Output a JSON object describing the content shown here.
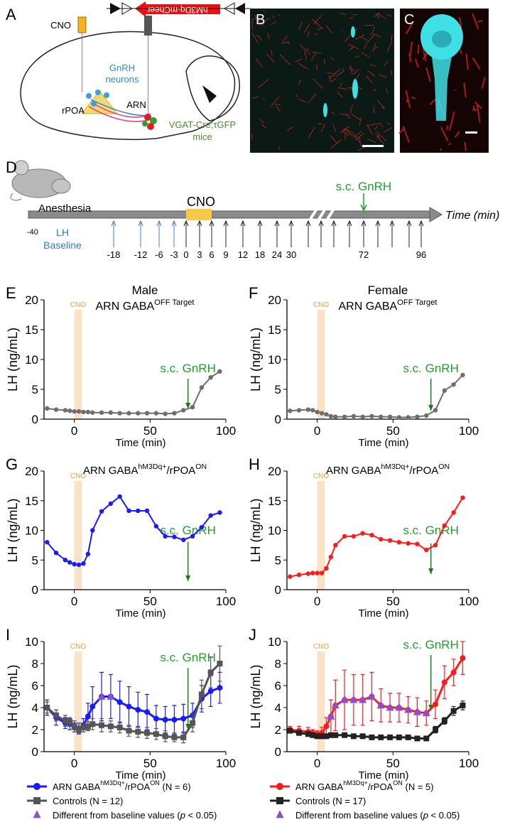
{
  "panel_labels": [
    "A",
    "B",
    "C",
    "D",
    "E",
    "F",
    "G",
    "H",
    "I",
    "J"
  ],
  "schematic": {
    "cno": "CNO",
    "construct": "hM3Dq-mCheer",
    "gnrh_neurons": [
      "GnRH",
      "neurons"
    ],
    "rpoa": "rPOA",
    "arn": "ARN",
    "mice": [
      "VGAT-Cre;τGFP",
      "mice"
    ]
  },
  "timeline": {
    "anesthesia": "Anesthesia",
    "start": "-40",
    "cno": "CNO",
    "injection": "s.c. GnRH",
    "axis_label": "Time (min)",
    "baseline": [
      "LH",
      "Baseline"
    ],
    "sample_labels": [
      "-18",
      "-12",
      "-6",
      "-3",
      "0",
      "3",
      "6",
      "9",
      "12",
      "18",
      "24",
      "30",
      "72",
      "96"
    ]
  },
  "chart_data": [
    {
      "type": "line",
      "title": "Male",
      "subtitle": [
        "ARN GABA",
        "OFF Target"
      ],
      "x": [
        -18,
        -12,
        -6,
        -3,
        0,
        3,
        6,
        9,
        12,
        18,
        24,
        30,
        36,
        42,
        48,
        54,
        60,
        66,
        72,
        78,
        84,
        90,
        96
      ],
      "xlim": [
        -20,
        100
      ],
      "xticks": [
        0,
        50,
        100
      ],
      "ylim": [
        0,
        20
      ],
      "yticks": [
        0,
        5,
        10,
        15,
        20
      ],
      "x_label": "Time (min)",
      "y_label": "LH (ng/mL)",
      "band": {
        "label": "CNO",
        "range": [
          0,
          5
        ],
        "color": "#fbe1c6"
      },
      "annotation": {
        "text": "s.c. GnRH",
        "x": 75,
        "color": "#1fa02a"
      },
      "series": [
        {
          "color": "#6e6e6e",
          "marker": "circle",
          "values": [
            1.8,
            1.6,
            1.5,
            1.4,
            1.3,
            1.3,
            1.2,
            1.2,
            1.1,
            1.1,
            1.1,
            1.0,
            1.0,
            1.0,
            1.0,
            1.0,
            0.9,
            1.0,
            1.5,
            2.0,
            5.3,
            7.0,
            8.0
          ]
        }
      ]
    },
    {
      "type": "line",
      "title": "Female",
      "subtitle": [
        "ARN GABA",
        "OFF Target"
      ],
      "x": [
        -18,
        -12,
        -6,
        -3,
        0,
        3,
        6,
        9,
        12,
        18,
        24,
        30,
        36,
        42,
        48,
        54,
        60,
        66,
        72,
        78,
        84,
        90,
        96
      ],
      "xlim": [
        -20,
        100
      ],
      "xticks": [
        0,
        50,
        100
      ],
      "ylim": [
        0,
        20
      ],
      "yticks": [
        0,
        5,
        10,
        15,
        20
      ],
      "x_label": "Time (min)",
      "y_label": "LH (ng/mL)",
      "band": {
        "label": "CNO",
        "range": [
          0,
          5
        ],
        "color": "#fbe1c6"
      },
      "annotation": {
        "text": "s.c. GnRH",
        "x": 75,
        "color": "#1fa02a"
      },
      "series": [
        {
          "color": "#6e6e6e",
          "marker": "circle",
          "values": [
            1.4,
            1.5,
            1.6,
            1.5,
            1.2,
            1.0,
            0.8,
            0.5,
            0.4,
            0.4,
            0.5,
            0.4,
            0.5,
            0.4,
            0.4,
            0.3,
            0.3,
            0.4,
            0.6,
            1.5,
            4.8,
            5.8,
            7.4
          ]
        }
      ]
    },
    {
      "type": "line",
      "title": [
        "ARN GABA",
        "hM3Dq+",
        "/rPOA",
        "ON"
      ],
      "x": [
        -18,
        -12,
        -6,
        -3,
        0,
        3,
        6,
        9,
        12,
        18,
        24,
        30,
        36,
        42,
        48,
        54,
        60,
        66,
        72,
        78,
        84,
        90,
        96
      ],
      "xlim": [
        -20,
        100
      ],
      "xticks": [
        0,
        50,
        100
      ],
      "ylim": [
        0,
        20
      ],
      "yticks": [
        0,
        5,
        10,
        15,
        20
      ],
      "x_label": "Time (min)",
      "y_label": "LH (ng/mL)",
      "band": {
        "label": "CNO",
        "range": [
          0,
          5
        ],
        "color": "#fbe1c6"
      },
      "annotation": {
        "text": "s.c. GnRH",
        "x": 75,
        "color": "#1fa02a"
      },
      "series": [
        {
          "color": "#1a1aff",
          "marker": "circle",
          "values": [
            8.0,
            6.2,
            5.0,
            4.6,
            4.3,
            4.2,
            4.4,
            6.0,
            10.0,
            13.2,
            14.5,
            15.7,
            13.3,
            13.3,
            13.3,
            10.7,
            9.0,
            8.9,
            8.4,
            9.0,
            10.5,
            12.5,
            13.0
          ]
        }
      ]
    },
    {
      "type": "line",
      "title": [
        "ARN GABA",
        "hM3Dq+",
        "/rPOA",
        "ON"
      ],
      "x": [
        -18,
        -12,
        -6,
        -3,
        0,
        3,
        6,
        9,
        12,
        18,
        24,
        30,
        36,
        42,
        48,
        54,
        60,
        66,
        72,
        78,
        84,
        90,
        96
      ],
      "xlim": [
        -20,
        100
      ],
      "xticks": [
        0,
        50,
        100
      ],
      "ylim": [
        0,
        20
      ],
      "yticks": [
        0,
        5,
        10,
        15,
        20
      ],
      "x_label": "Time (min)",
      "y_label": "LH (ng/mL)",
      "band": {
        "label": "CNO",
        "range": [
          0,
          5
        ],
        "color": "#fbe1c6"
      },
      "annotation": {
        "text": "s.c. GnRH",
        "x": 75,
        "color": "#1fa02a"
      },
      "series": [
        {
          "color": "#ff1a1a",
          "marker": "circle",
          "values": [
            2.2,
            2.5,
            2.7,
            2.8,
            2.8,
            2.8,
            3.6,
            5.5,
            7.5,
            9.0,
            9.0,
            9.5,
            9.2,
            8.5,
            8.3,
            8.0,
            7.8,
            7.7,
            6.7,
            7.5,
            10.8,
            13.0,
            15.5
          ]
        }
      ]
    },
    {
      "type": "line",
      "x": [
        -18,
        -12,
        -6,
        -3,
        0,
        3,
        6,
        9,
        12,
        18,
        24,
        30,
        36,
        42,
        48,
        54,
        60,
        66,
        72,
        78,
        84,
        90,
        96
      ],
      "xlim": [
        -20,
        100
      ],
      "xticks": [
        0,
        50,
        100
      ],
      "ylim": [
        0,
        10
      ],
      "yticks": [
        0,
        2,
        4,
        6,
        8,
        10
      ],
      "x_label": "Time (min)",
      "y_label": "LH (ng/mL)",
      "band": {
        "label": "CNO",
        "range": [
          0,
          5
        ],
        "color": "#fbe1c6"
      },
      "annotation": {
        "text": "s.c. GnRH",
        "x": 75,
        "color": "#1fa02a"
      },
      "series": [
        {
          "name": [
            "ARN GABA",
            "hM3Dq+",
            "/rPOA",
            "ON",
            " (N = 6)"
          ],
          "color": "#1a1aff",
          "marker": "circle",
          "values": [
            4.0,
            3.1,
            2.6,
            2.5,
            2.2,
            2.1,
            2.4,
            3.2,
            4.1,
            5.0,
            5.0,
            4.5,
            4.1,
            3.8,
            3.6,
            3.0,
            2.9,
            2.9,
            3.0,
            3.3,
            4.8,
            5.5,
            5.8
          ],
          "errors": [
            0.7,
            0.7,
            0.5,
            0.5,
            0.4,
            0.5,
            0.6,
            1.2,
            1.8,
            2.2,
            2.0,
            1.9,
            1.8,
            1.6,
            1.6,
            1.2,
            1.2,
            1.3,
            1.3,
            1.1,
            1.2,
            1.4,
            1.4
          ]
        },
        {
          "name": [
            "Controls (N = 12)"
          ],
          "color": "#555555",
          "marker": "square",
          "values": [
            4.0,
            3.3,
            2.8,
            2.7,
            2.3,
            2.0,
            2.2,
            2.3,
            2.5,
            2.4,
            2.3,
            2.2,
            1.9,
            1.8,
            1.7,
            1.6,
            1.4,
            1.3,
            1.3,
            2.6,
            5.2,
            7.2,
            8.0
          ],
          "errors": [
            0.5,
            0.5,
            0.5,
            0.4,
            0.5,
            0.3,
            0.4,
            0.4,
            0.5,
            0.6,
            0.5,
            0.5,
            0.5,
            0.5,
            0.5,
            0.5,
            0.5,
            0.4,
            0.5,
            0.8,
            1.3,
            1.4,
            1.6
          ]
        }
      ],
      "markers": {
        "name": [
          "Different from baseline values (",
          "p",
          " < 0.05)"
        ],
        "color": "#8a4fd0",
        "shape": "triangle",
        "x": [
          18,
          24
        ],
        "values": [
          5.0,
          5.0
        ]
      }
    },
    {
      "type": "line",
      "x": [
        -18,
        -12,
        -6,
        -3,
        0,
        3,
        6,
        9,
        12,
        18,
        24,
        30,
        36,
        42,
        48,
        54,
        60,
        66,
        72,
        78,
        84,
        90,
        96
      ],
      "xlim": [
        -20,
        100
      ],
      "xticks": [
        0,
        50,
        100
      ],
      "ylim": [
        0,
        10
      ],
      "yticks": [
        0,
        2,
        4,
        6,
        8,
        10
      ],
      "x_label": "Time (min)",
      "y_label": "LH (ng/mL)",
      "band": {
        "label": "CNO",
        "range": [
          0,
          5
        ],
        "color": "#fbe1c6"
      },
      "annotation": {
        "text": "s.c. GnRH",
        "x": 75,
        "color": "#1fa02a"
      },
      "series": [
        {
          "name": [
            "ARN GABA",
            "hM3Dq+",
            "/rPOA",
            "ON",
            " (N = 5)"
          ],
          "color": "#ff1a1a",
          "marker": "circle",
          "values": [
            2.0,
            1.9,
            1.8,
            1.7,
            1.6,
            1.7,
            2.3,
            3.2,
            4.2,
            4.7,
            4.7,
            4.7,
            5.0,
            4.2,
            4.0,
            4.0,
            3.8,
            3.6,
            3.5,
            4.3,
            6.3,
            7.2,
            8.5
          ],
          "errors": [
            0.3,
            0.4,
            0.4,
            0.3,
            0.3,
            0.5,
            0.8,
            1.5,
            2.3,
            2.7,
            2.3,
            2.3,
            2.2,
            1.5,
            1.3,
            1.3,
            1.2,
            1.3,
            1.1,
            1.3,
            1.5,
            1.2,
            1.5
          ]
        },
        {
          "name": [
            "Controls (N = 17)"
          ],
          "color": "#222222",
          "marker": "square",
          "values": [
            1.9,
            1.7,
            1.6,
            1.5,
            1.4,
            1.4,
            1.4,
            1.5,
            1.5,
            1.5,
            1.4,
            1.4,
            1.3,
            1.3,
            1.3,
            1.3,
            1.3,
            1.2,
            1.2,
            2.0,
            2.8,
            3.7,
            4.2
          ],
          "errors": [
            0.2,
            0.2,
            0.2,
            0.2,
            0.2,
            0.2,
            0.2,
            0.2,
            0.2,
            0.2,
            0.2,
            0.2,
            0.2,
            0.2,
            0.2,
            0.2,
            0.2,
            0.2,
            0.2,
            0.3,
            0.3,
            0.4,
            0.4
          ]
        }
      ],
      "markers": {
        "name": [
          "Different from baseline values (",
          "p",
          " < 0.05)"
        ],
        "color": "#8a4fd0",
        "shape": "triangle",
        "x": [
          9,
          12,
          18,
          24,
          30,
          36,
          42,
          48,
          54,
          60,
          66,
          72
        ],
        "values": [
          3.2,
          4.2,
          4.7,
          4.7,
          4.7,
          5.0,
          4.2,
          4.0,
          4.0,
          3.8,
          3.6,
          3.5
        ]
      }
    }
  ]
}
